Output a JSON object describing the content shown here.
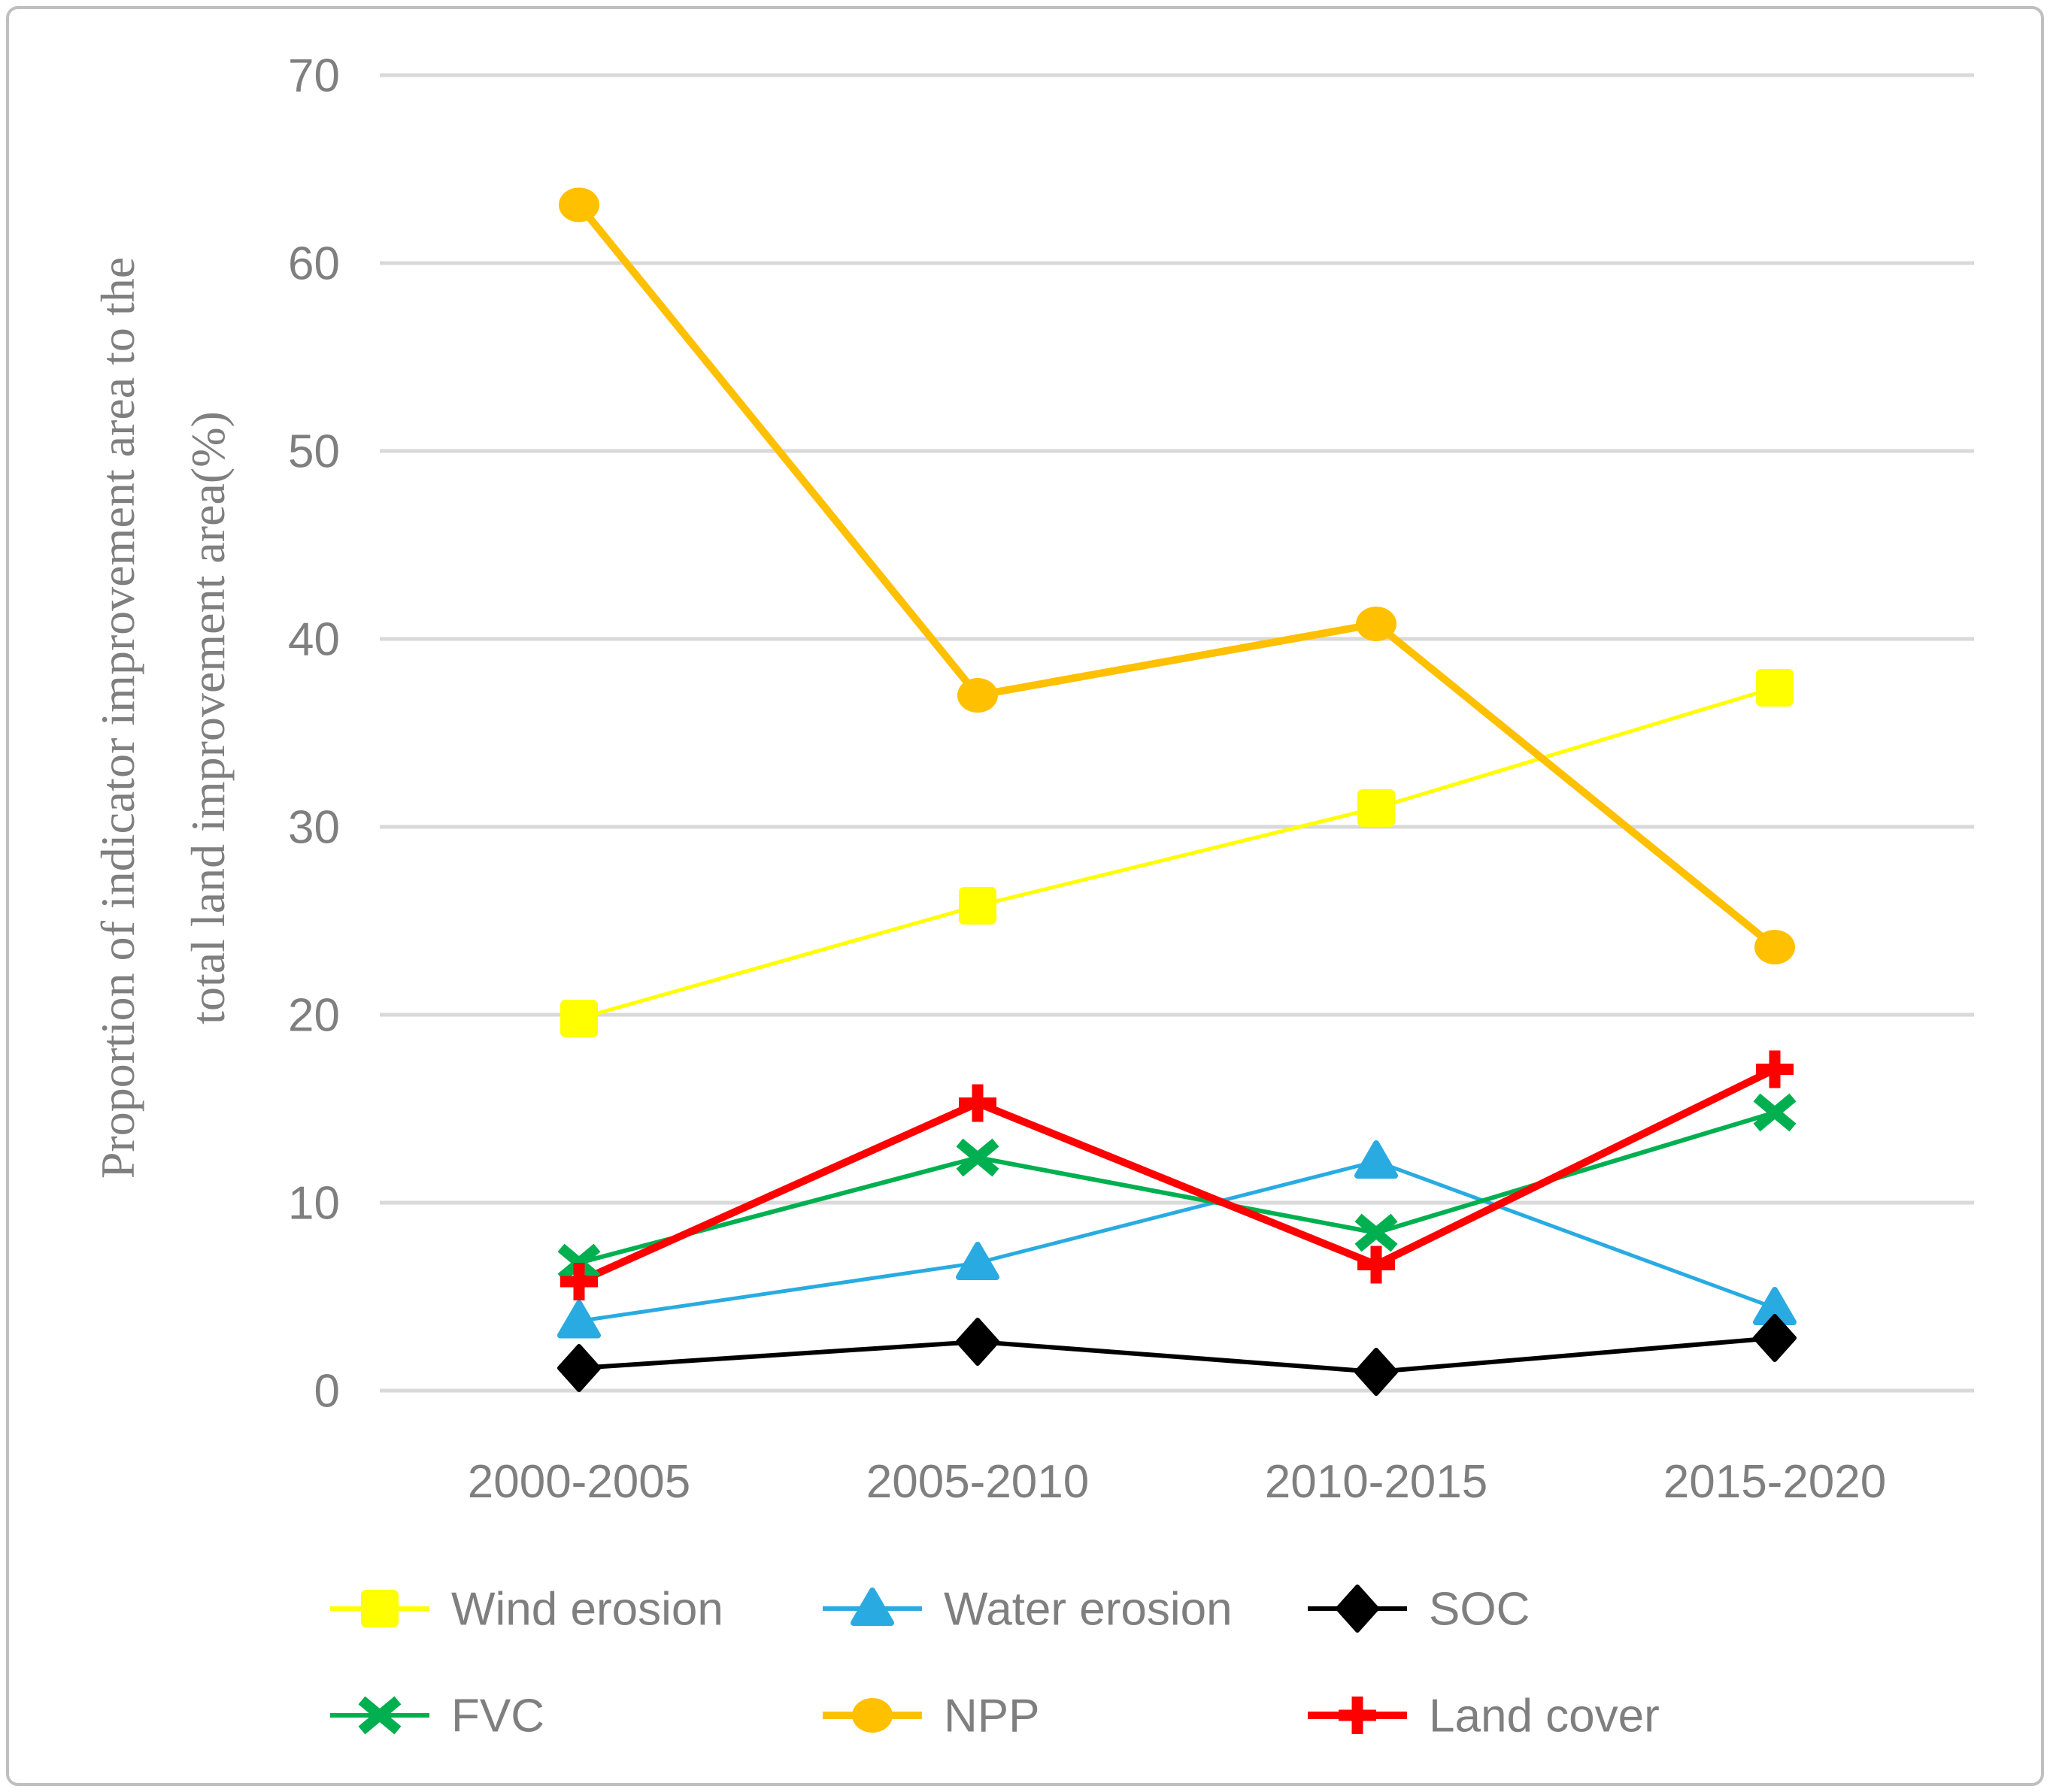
{
  "chart_data": {
    "type": "line",
    "title": "",
    "ylabel_lines": [
      "Proportion of indicator improvement area to the",
      "total land improvement area(%)"
    ],
    "xlabel": "",
    "categories": [
      "2000-2005",
      "2005-2010",
      "2010-2015",
      "2015-2020"
    ],
    "y_ticks": [
      0,
      10,
      20,
      30,
      40,
      50,
      60,
      70
    ],
    "ylim": [
      0,
      70
    ],
    "grid": true,
    "legend_position": "bottom",
    "series": [
      {
        "name": "Wind erosion",
        "marker": "square",
        "color": "#FFFF00",
        "line_width": 5,
        "values": [
          19.8,
          25.8,
          31.0,
          37.4
        ]
      },
      {
        "name": "Water erosion",
        "marker": "triangle",
        "color": "#29ABE2",
        "line_width": 5,
        "values": [
          3.7,
          6.8,
          12.2,
          4.4
        ]
      },
      {
        "name": "SOC",
        "marker": "diamond",
        "color": "#000000",
        "line_width": 6,
        "values": [
          1.2,
          2.6,
          1.0,
          2.8
        ]
      },
      {
        "name": "FVC",
        "marker": "x",
        "color": "#00B050",
        "line_width": 6,
        "values": [
          6.8,
          12.4,
          8.4,
          14.8
        ]
      },
      {
        "name": "NPP",
        "marker": "circle",
        "color": "#FFC000",
        "line_width": 10,
        "values": [
          63.1,
          37.0,
          40.8,
          23.6
        ]
      },
      {
        "name": "Land cover",
        "marker": "plus",
        "color": "#FF0000",
        "line_width": 10,
        "values": [
          5.8,
          15.3,
          6.7,
          17.1
        ]
      }
    ],
    "legend_rows": [
      [
        "Wind erosion",
        "Water erosion",
        "SOC"
      ],
      [
        "FVC",
        "NPP",
        "Land cover"
      ]
    ]
  },
  "colors": {
    "grid": "#D9D9D9",
    "text": "#7F7F7F",
    "frame_border": "#BFBFBF",
    "background": "#FFFFFF"
  }
}
